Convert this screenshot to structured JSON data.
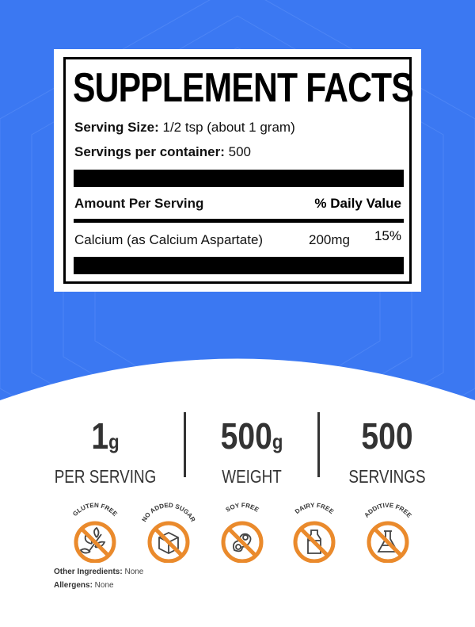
{
  "colors": {
    "background_blue": "#3b78f2",
    "accent_orange": "#ea8a2c",
    "text_dark": "#333333"
  },
  "facts": {
    "title": "SUPPLEMENT FACTS",
    "serving_size_label": "Serving Size:",
    "serving_size_value": " 1/2 tsp (about 1 gram)",
    "servings_label": "Servings per container:",
    "servings_value": " 500",
    "amount_header": "Amount Per Serving",
    "dv_header": "% Daily Value",
    "ingredients": [
      {
        "name": "Calcium (as Calcium Aspartate)",
        "amount": "200mg",
        "dv": "15%"
      }
    ]
  },
  "stats": [
    {
      "value": "1",
      "unit": "g",
      "label": "PER SERVING"
    },
    {
      "value": "500",
      "unit": "g",
      "label": "WEIGHT"
    },
    {
      "value": "500",
      "unit": "",
      "label": "SERVINGS"
    }
  ],
  "badges": [
    {
      "label": "GLUTEN FREE",
      "icon": "wheat-icon"
    },
    {
      "label": "NO ADDED SUGAR",
      "icon": "sugar-cube-icon"
    },
    {
      "label": "SOY FREE",
      "icon": "soybean-icon"
    },
    {
      "label": "DAIRY FREE",
      "icon": "milk-bottle-icon"
    },
    {
      "label": "ADDITIVE FREE",
      "icon": "flask-icon"
    }
  ],
  "footer": {
    "other_label": "Other Ingredients:",
    "other_value": " None",
    "allergens_label": "Allergens:",
    "allergens_value": " None"
  }
}
